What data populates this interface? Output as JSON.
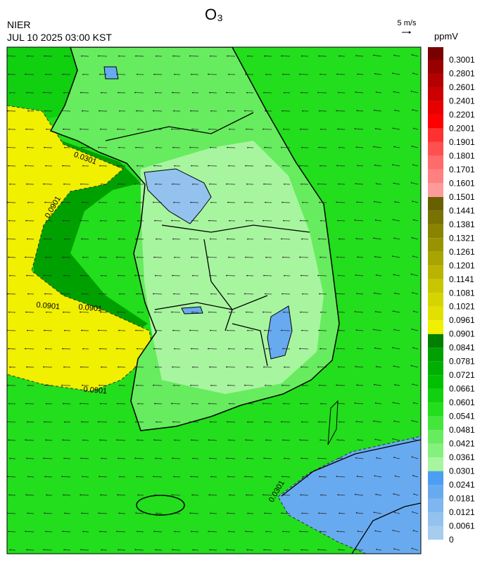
{
  "title": "O₃",
  "agency": "NIER",
  "timestamp": "JUL 10 2025 03:00 KST",
  "wind_scale": "5 m/s",
  "colorbar": {
    "unit": "ppmV",
    "ticks": [
      0,
      0.0061,
      0.0121,
      0.0181,
      0.0241,
      0.0301,
      0.0361,
      0.0421,
      0.0481,
      0.0541,
      0.0601,
      0.0661,
      0.0721,
      0.0781,
      0.0841,
      0.0901,
      0.0961,
      0.1021,
      0.1081,
      0.1141,
      0.1201,
      0.1261,
      0.1321,
      0.1381,
      0.1441,
      0.1501,
      0.1601,
      0.1701,
      0.1801,
      0.1901,
      0.2001,
      0.2201,
      0.2401,
      0.2601,
      0.2801,
      0.3001
    ],
    "colors": [
      "#a6cdee",
      "#93c2ef",
      "#7fb6ef",
      "#68aaf0",
      "#4c9ef2",
      "#a8f5a0",
      "#86f07e",
      "#66ec5e",
      "#44e63c",
      "#22de1c",
      "#10d010",
      "#00c000",
      "#00b000",
      "#00a000",
      "#007f00",
      "#f0f000",
      "#e2e000",
      "#d6d400",
      "#c8c600",
      "#b8b400",
      "#a8a400",
      "#989400",
      "#888400",
      "#787200",
      "#686000",
      "#ff9a9a",
      "#ff8080",
      "#ff6a6a",
      "#ff5050",
      "#ff3030",
      "#ff0000",
      "#e60000",
      "#cc0000",
      "#b30000",
      "#990000",
      "#7a0000"
    ]
  },
  "contour_labels": [
    "0.0901",
    "0.0901",
    "0.0901",
    "0.0901",
    "0.0301",
    "0.0301"
  ]
}
